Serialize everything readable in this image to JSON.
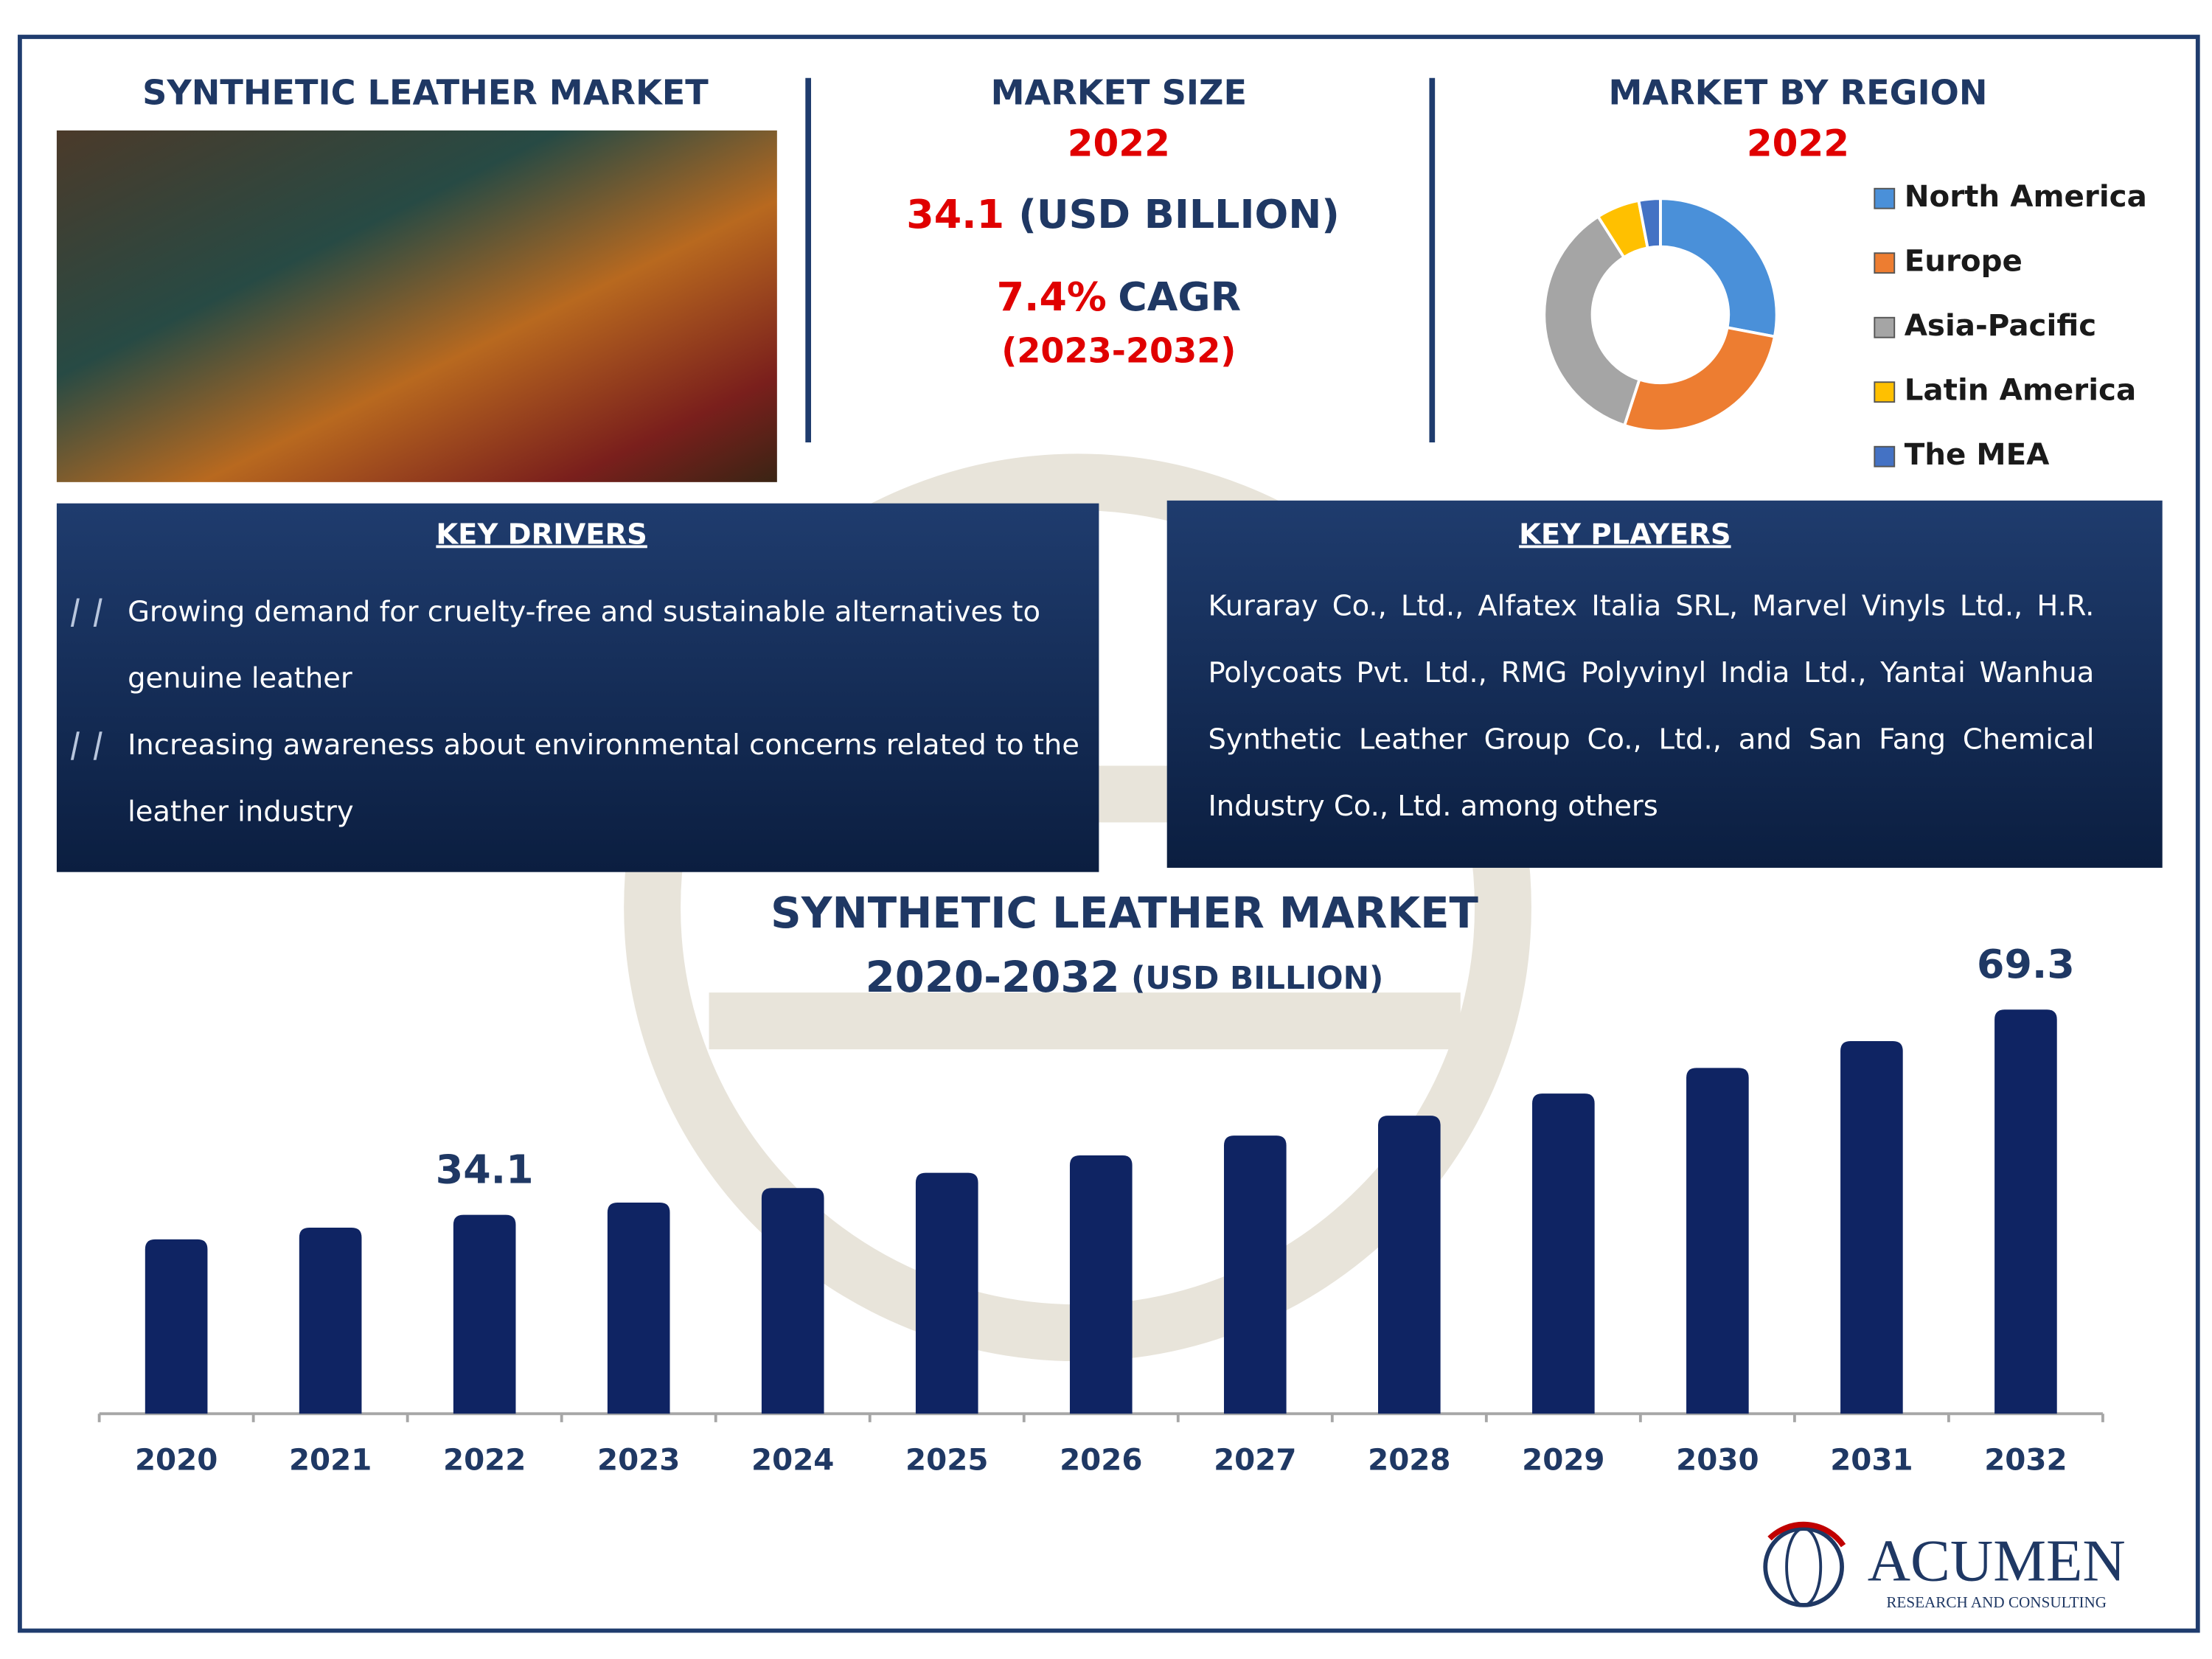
{
  "header": {
    "title": "SYNTHETIC LEATHER MARKET"
  },
  "market_size": {
    "title": "MARKET SIZE",
    "year": "2022",
    "value": "34.1",
    "unit": "(USD BILLION)",
    "cagr_value": "7.4%",
    "cagr_label": "CAGR",
    "cagr_period": "(2023-2032)"
  },
  "key_drivers": {
    "title": "KEY DRIVERS",
    "items": [
      "Growing demand for cruelty-free and sustainable alternatives to genuine leather",
      "Increasing awareness about environmental concerns related to the leather industry"
    ]
  },
  "key_players": {
    "title": "KEY PLAYERS",
    "text": "Kuraray Co., Ltd., Alfatex Italia SRL, Marvel Vinyls Ltd., H.R. Polycoats Pvt. Ltd., RMG Polyvinyl India Ltd., Yantai Wanhua Synthetic Leather Group Co., Ltd., and San Fang Chemical Industry Co., Ltd. among others"
  },
  "logo": {
    "name": "ACUMEN",
    "tagline": "RESEARCH AND CONSULTING"
  },
  "chart_data": [
    {
      "type": "bar",
      "title": "SYNTHETIC LEATHER MARKET",
      "subtitle": "2020-2032",
      "unit": "(USD BILLION)",
      "categories": [
        "2020",
        "2021",
        "2022",
        "2023",
        "2024",
        "2025",
        "2026",
        "2027",
        "2028",
        "2029",
        "2030",
        "2031",
        "2032"
      ],
      "values": [
        29.9,
        31.9,
        34.1,
        36.2,
        38.7,
        41.3,
        44.3,
        47.7,
        51.1,
        54.9,
        59.3,
        63.9,
        69.3
      ],
      "value_labels": [
        null,
        null,
        "34.1",
        null,
        null,
        null,
        null,
        null,
        null,
        null,
        null,
        null,
        "69.3"
      ],
      "color": "#0f2463",
      "ylim": [
        0,
        80
      ]
    },
    {
      "type": "pie",
      "title": "MARKET BY REGION",
      "subtitle": "2022",
      "categories": [
        "North America",
        "Europe",
        "Asia-Pacific",
        "Latin America",
        "The MEA"
      ],
      "values": [
        28,
        27,
        36,
        6,
        3
      ],
      "colors": [
        "#4a90d9",
        "#ed7d31",
        "#a5a5a5",
        "#ffc000",
        "#4472c4"
      ]
    }
  ]
}
